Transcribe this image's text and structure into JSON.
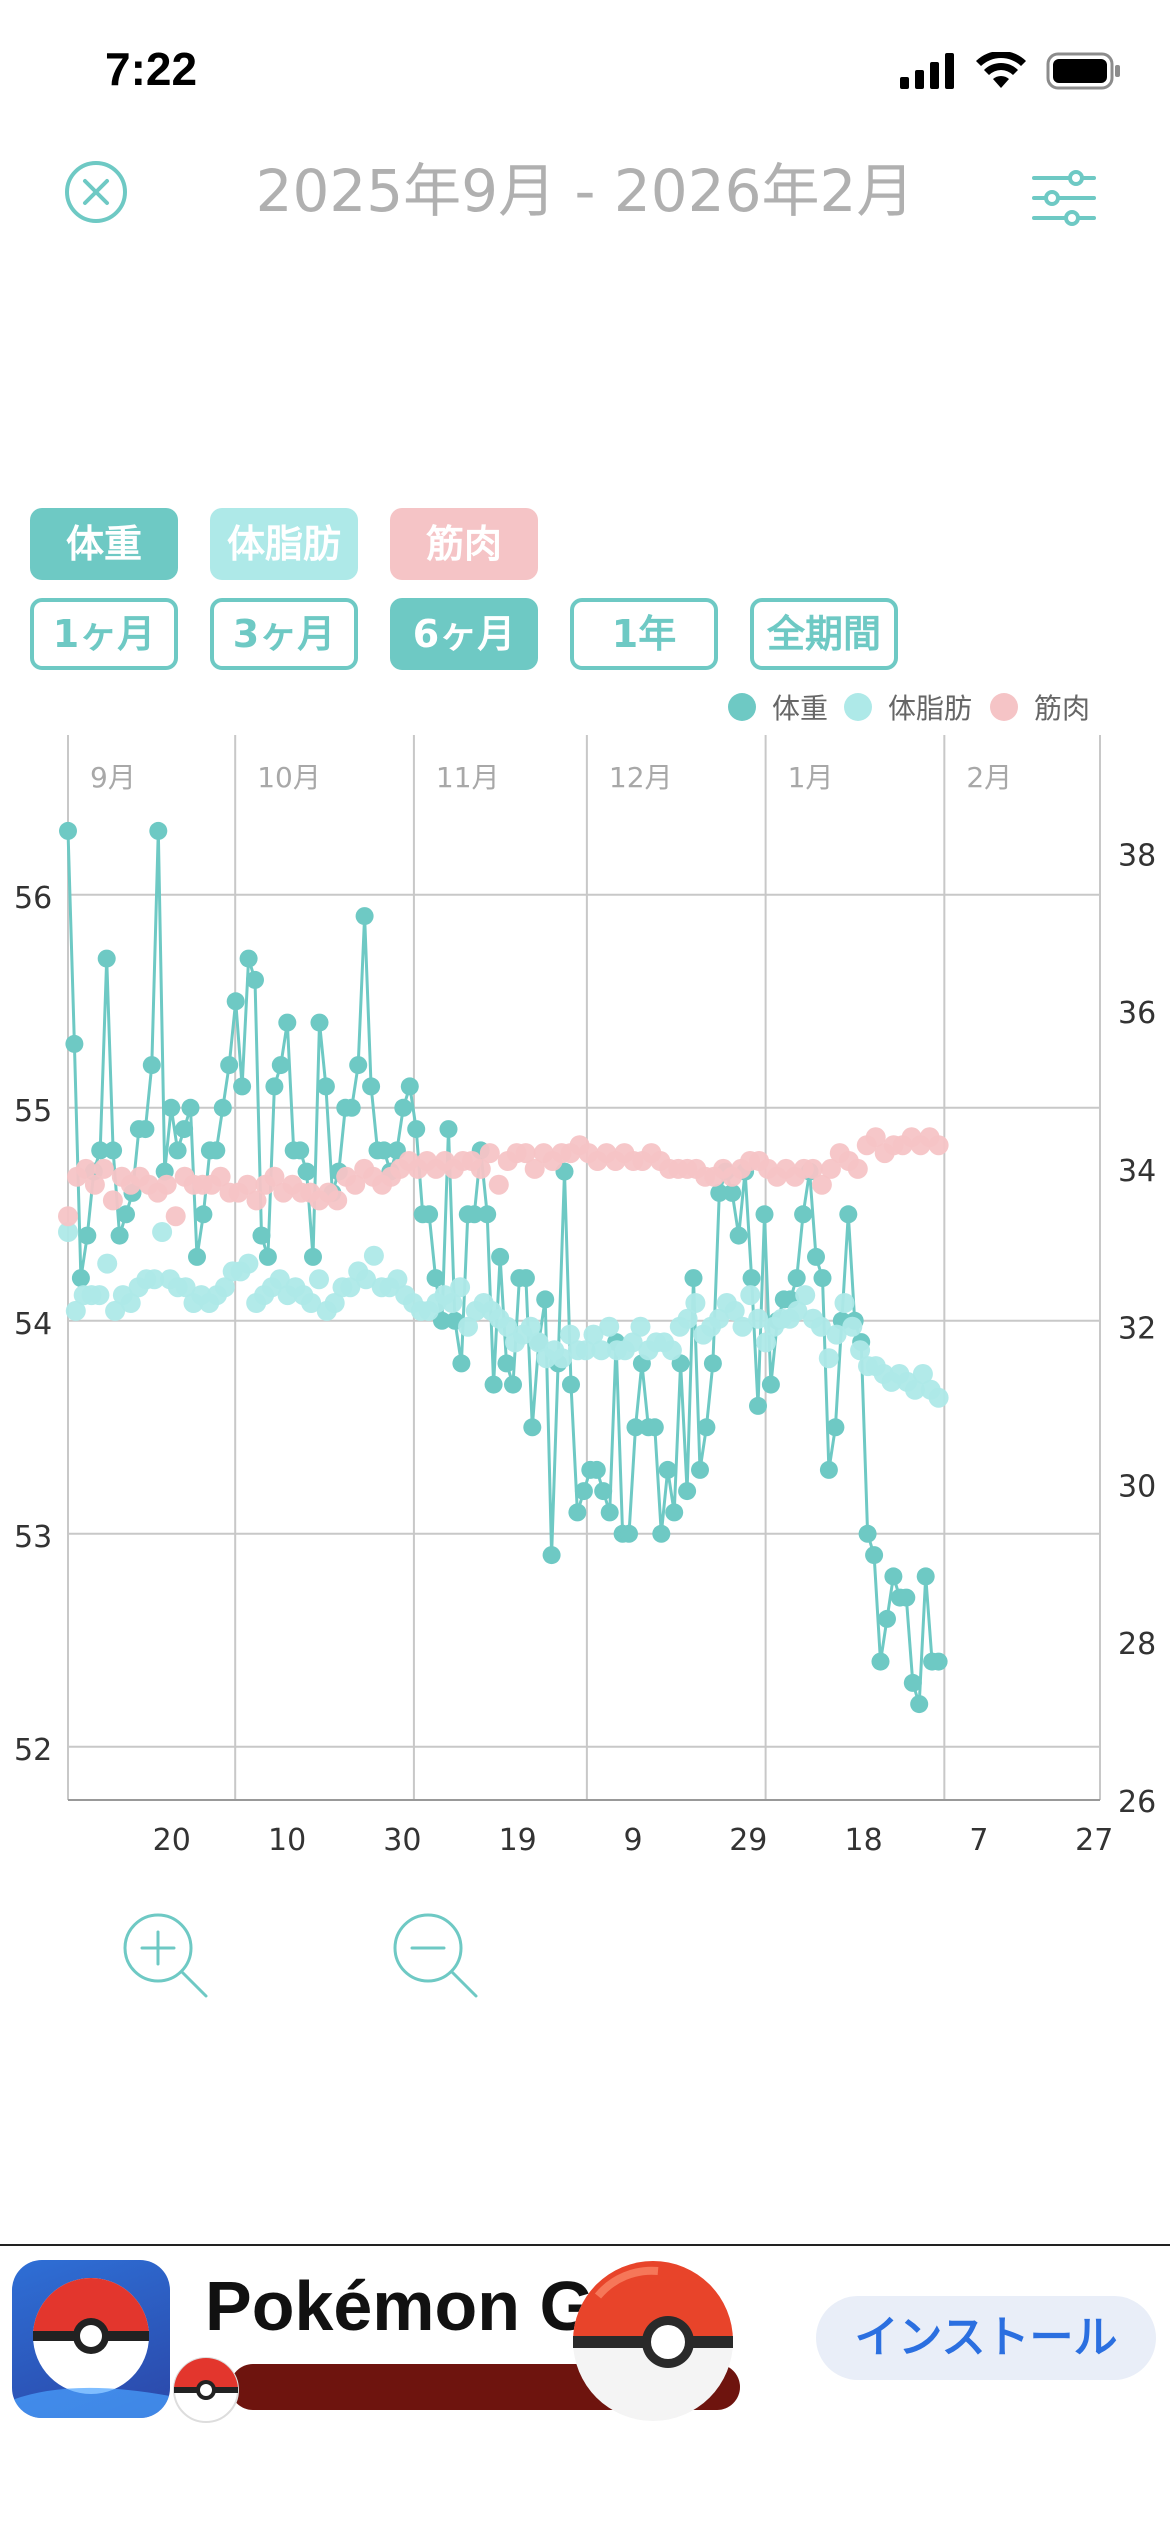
{
  "status": {
    "time": "7:22"
  },
  "header": {
    "title": "2025年9月 - 2026年2月"
  },
  "metric_tabs": [
    {
      "label": "体重"
    },
    {
      "label": "体脂肪"
    },
    {
      "label": "筋肉"
    }
  ],
  "range_tabs": [
    {
      "label": "1ヶ月",
      "active": false
    },
    {
      "label": "3ヶ月",
      "active": false
    },
    {
      "label": "6ヶ月",
      "active": true
    },
    {
      "label": "1年",
      "active": false
    },
    {
      "label": "全期間",
      "active": false
    }
  ],
  "colors": {
    "weight": "#6ec9c4",
    "fat": "#aee9e8",
    "muscle": "#f5c4c6",
    "grid": "#c8c8c8",
    "axis_text": "#333333",
    "month_text": "#a8a8a8"
  },
  "chart_data": {
    "type": "line",
    "legend_placement": "top-right",
    "grid": true,
    "series": [
      {
        "name": "体重",
        "axis": "left",
        "color": "#6ec9c4",
        "values": [
          56.3,
          55.3,
          54.2,
          54.4,
          54.7,
          54.8,
          55.7,
          54.8,
          54.4,
          54.5,
          54.6,
          54.9,
          54.9,
          55.2,
          56.3,
          54.7,
          55.0,
          54.8,
          54.9,
          55.0,
          54.3,
          54.5,
          54.8,
          54.8,
          55.0,
          55.2,
          55.5,
          55.1,
          55.7,
          55.6,
          54.4,
          54.3,
          55.1,
          55.2,
          55.4,
          54.8,
          54.8,
          54.7,
          54.3,
          55.4,
          55.1,
          54.6,
          54.7,
          55.0,
          55.0,
          55.2,
          55.9,
          55.1,
          54.8,
          54.8,
          54.7,
          54.8,
          55.0,
          55.1,
          54.9,
          54.5,
          54.5,
          54.2,
          54.0,
          54.9,
          54.0,
          53.8,
          54.5,
          54.5,
          54.8,
          54.5,
          53.7,
          54.3,
          53.8,
          53.7,
          54.2,
          54.2,
          53.5,
          53.9,
          54.1,
          52.9,
          53.8,
          54.7,
          53.7,
          53.1,
          53.2,
          53.3,
          53.3,
          53.2,
          53.1,
          53.9,
          53.0,
          53.0,
          53.5,
          53.8,
          53.5,
          53.5,
          53.0,
          53.3,
          53.1,
          53.8,
          53.2,
          54.2,
          53.3,
          53.5,
          53.8,
          54.6,
          54.7,
          54.6,
          54.4,
          54.7,
          54.2,
          53.6,
          54.5,
          53.7,
          54.0,
          54.1,
          54.1,
          54.2,
          54.5,
          54.7,
          54.3,
          54.2,
          53.3,
          53.5,
          54.0,
          54.5,
          54.0,
          53.9,
          53.0,
          52.9,
          52.4,
          52.6,
          52.8,
          52.7,
          52.7,
          52.3,
          52.2,
          52.8,
          52.4,
          52.4
        ],
        "day_from": 0,
        "day_to": 151
      },
      {
        "name": "体脂肪",
        "axis": "right",
        "color": "#aee9e8",
        "values": [
          33.2,
          32.2,
          32.4,
          32.4,
          32.4,
          32.8,
          32.2,
          32.4,
          32.3,
          32.5,
          32.6,
          32.6,
          33.2,
          32.6,
          32.5,
          32.5,
          32.3,
          32.4,
          32.3,
          32.4,
          32.5,
          32.7,
          32.7,
          32.8,
          32.3,
          32.4,
          32.5,
          32.6,
          32.4,
          32.5,
          32.4,
          32.3,
          32.6,
          32.2,
          32.3,
          32.5,
          32.5,
          32.7,
          32.6,
          32.9,
          32.5,
          32.5,
          32.6,
          32.4,
          32.3,
          32.2,
          32.2,
          32.3,
          32.4,
          32.3,
          32.5,
          32.0,
          32.2,
          32.3,
          32.2,
          32.1,
          32.0,
          31.8,
          31.9,
          32.0,
          31.8,
          31.6,
          31.7,
          31.6,
          31.9,
          31.7,
          31.7,
          31.9,
          31.7,
          32.0,
          31.7,
          31.7,
          31.8,
          32.0,
          31.7,
          31.8,
          31.8,
          31.7,
          32.0,
          32.1,
          32.3,
          31.9,
          32.0,
          32.1,
          32.3,
          32.2,
          32.0,
          32.4,
          32.1,
          31.8,
          32.0,
          32.1,
          32.1,
          32.2,
          32.4,
          32.1,
          32.0,
          31.6,
          31.9,
          32.3,
          32.0,
          31.7,
          31.5,
          31.5,
          31.4,
          31.3,
          31.4,
          31.3,
          31.2,
          31.4,
          31.2,
          31.1
        ],
        "day_from": 0,
        "day_to": 151
      },
      {
        "name": "筋肉",
        "axis": "right",
        "color": "#f5c4c6",
        "values": [
          33.4,
          33.9,
          34.0,
          33.8,
          34.0,
          33.6,
          33.9,
          33.8,
          33.9,
          33.8,
          33.7,
          33.8,
          33.4,
          33.9,
          33.8,
          33.8,
          33.8,
          33.9,
          33.7,
          33.7,
          33.8,
          33.6,
          33.8,
          33.9,
          33.7,
          33.8,
          33.7,
          33.7,
          33.6,
          33.7,
          33.6,
          33.9,
          33.8,
          34.0,
          33.9,
          33.8,
          33.9,
          34.0,
          34.1,
          34.0,
          34.1,
          34.0,
          34.1,
          34.0,
          34.1,
          34.1,
          34.0,
          34.2,
          33.8,
          34.1,
          34.2,
          34.2,
          34.0,
          34.2,
          34.1,
          34.2,
          34.2,
          34.3,
          34.2,
          34.1,
          34.2,
          34.1,
          34.2,
          34.1,
          34.1,
          34.2,
          34.1,
          34.0,
          34.0,
          34.0,
          34.0,
          33.9,
          33.9,
          34.0,
          33.9,
          34.0,
          34.1,
          34.1,
          34.0,
          33.9,
          34.0,
          33.9,
          34.0,
          34.0,
          33.8,
          34.0,
          34.2,
          34.1,
          34.0,
          34.3,
          34.4,
          34.2,
          34.3,
          34.3,
          34.4,
          34.3,
          34.4,
          34.3
        ],
        "day_from": 0,
        "day_to": 151
      }
    ],
    "left_axis": {
      "min": 51.75,
      "max": 56.75,
      "ticks": [
        52,
        53,
        54,
        55,
        56
      ]
    },
    "right_axis": {
      "min": 26,
      "max": 39.5,
      "ticks": [
        26,
        28,
        30,
        32,
        34,
        36,
        38
      ]
    },
    "x_axis": {
      "start": "2025-09-02",
      "end": "2026-02-28",
      "tick_labels": [
        {
          "label": "20",
          "date": "2025-09-20"
        },
        {
          "label": "10",
          "date": "2025-10-10"
        },
        {
          "label": "30",
          "date": "2025-10-30"
        },
        {
          "label": "19",
          "date": "2025-11-19"
        },
        {
          "label": "9",
          "date": "2025-12-09"
        },
        {
          "label": "29",
          "date": "2025-12-29"
        },
        {
          "label": "18",
          "date": "2026-01-18"
        },
        {
          "label": "7",
          "date": "2026-02-07"
        },
        {
          "label": "27",
          "date": "2026-02-27"
        }
      ],
      "month_labels": [
        {
          "label": "9月",
          "date": "2025-09-02"
        },
        {
          "label": "10月",
          "date": "2025-10-01"
        },
        {
          "label": "11月",
          "date": "2025-11-01"
        },
        {
          "label": "12月",
          "date": "2025-12-01"
        },
        {
          "label": "1月",
          "date": "2026-01-01"
        },
        {
          "label": "2月",
          "date": "2026-02-01"
        }
      ]
    }
  },
  "ad": {
    "title": "Pokémon GO",
    "install_label": "インストール"
  },
  "icons": {
    "close": "close-circle-icon",
    "filter": "sliders-icon",
    "zoom_in": "zoom-in-icon",
    "zoom_out": "zoom-out-icon"
  }
}
